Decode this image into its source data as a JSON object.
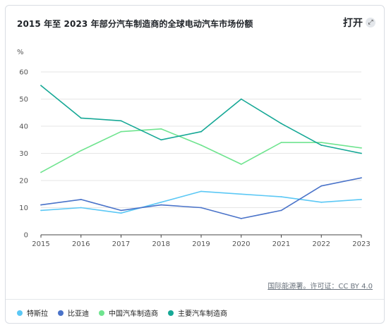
{
  "title": "2015 年至 2023 年部分汽车制造商的全球电动汽车市场份额",
  "open_button": {
    "label": "打开",
    "icon": "expand-icon"
  },
  "source": "国际能源署。许可证：CC BY 4.0",
  "colors": {
    "grid": "#e6e6e6",
    "axis": "#444444"
  },
  "chart_data": {
    "type": "line",
    "title": "2015 年至 2023 年部分汽车制造商的全球电动汽车市场份额",
    "xlabel": "",
    "ylabel": "%",
    "categories": [
      "2015",
      "2016",
      "2017",
      "2018",
      "2019",
      "2020",
      "2021",
      "2022",
      "2023"
    ],
    "ylim": [
      0,
      60
    ],
    "yticks": [
      0,
      10,
      20,
      30,
      40,
      50,
      60
    ],
    "grid": true,
    "legend_position": "bottom",
    "series": [
      {
        "name": "特斯拉",
        "color": "#5bc8f5",
        "values": [
          9,
          10,
          8,
          12,
          16,
          15,
          14,
          12,
          13
        ]
      },
      {
        "name": "比亚迪",
        "color": "#4a73c9",
        "values": [
          11,
          13,
          9,
          11,
          10,
          6,
          9,
          18,
          21
        ]
      },
      {
        "name": "中国汽车制造商",
        "color": "#6fe48f",
        "values": [
          23,
          31,
          38,
          39,
          33,
          26,
          34,
          34,
          32
        ]
      },
      {
        "name": "主要汽车制造商",
        "color": "#16a896",
        "values": [
          55,
          43,
          42,
          35,
          38,
          50,
          41,
          33,
          30
        ]
      }
    ]
  }
}
